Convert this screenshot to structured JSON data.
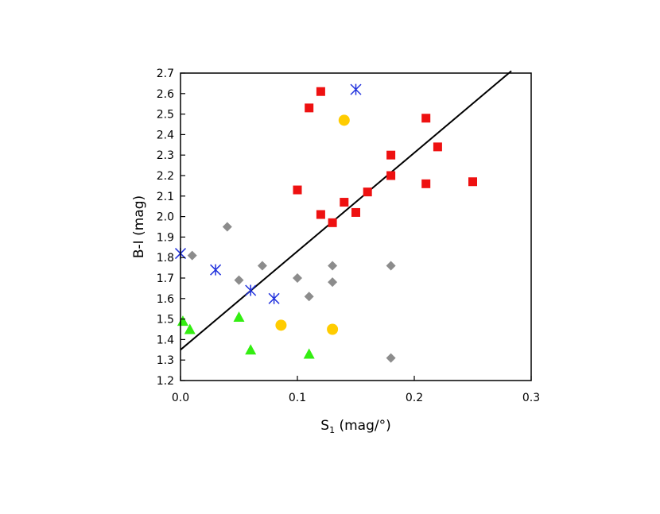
{
  "chart_data": {
    "type": "scatter",
    "xlabel": "S",
    "xlabel_sub": "1",
    "xlabel_unit": " (mag/°)",
    "ylabel": "B-I (mag)",
    "xlim": [
      0.0,
      0.3
    ],
    "ylim": [
      1.2,
      2.7
    ],
    "x_ticks": [
      "0.0",
      "0.1",
      "0.2",
      "0.3"
    ],
    "y_ticks": [
      "1.2",
      "1.3",
      "1.4",
      "1.5",
      "1.6",
      "1.7",
      "1.8",
      "1.9",
      "2.0",
      "2.1",
      "2.2",
      "2.3",
      "2.4",
      "2.5",
      "2.6",
      "2.7"
    ],
    "grid": false,
    "legend": "none",
    "series": [
      {
        "marker": "square",
        "color": "#ee1111",
        "points": [
          [
            0.1,
            2.13
          ],
          [
            0.11,
            2.53
          ],
          [
            0.12,
            2.61
          ],
          [
            0.12,
            2.01
          ],
          [
            0.13,
            1.97
          ],
          [
            0.14,
            2.07
          ],
          [
            0.15,
            2.02
          ],
          [
            0.16,
            2.12
          ],
          [
            0.18,
            2.3
          ],
          [
            0.18,
            2.2
          ],
          [
            0.21,
            2.48
          ],
          [
            0.21,
            2.16
          ],
          [
            0.22,
            2.34
          ],
          [
            0.25,
            2.17
          ]
        ]
      },
      {
        "marker": "asterisk",
        "color": "#2233dd",
        "points": [
          [
            0.0,
            1.82
          ],
          [
            0.03,
            1.74
          ],
          [
            0.06,
            1.64
          ],
          [
            0.08,
            1.6
          ],
          [
            0.15,
            2.62
          ]
        ]
      },
      {
        "marker": "diamond",
        "color": "#8c8c8c",
        "points": [
          [
            0.01,
            1.81
          ],
          [
            0.04,
            1.95
          ],
          [
            0.05,
            1.69
          ],
          [
            0.07,
            1.76
          ],
          [
            0.1,
            1.7
          ],
          [
            0.11,
            1.61
          ],
          [
            0.13,
            1.76
          ],
          [
            0.13,
            1.68
          ],
          [
            0.18,
            1.76
          ],
          [
            0.18,
            1.31
          ]
        ]
      },
      {
        "marker": "triangle",
        "color": "#33ee11",
        "points": [
          [
            0.002,
            1.49
          ],
          [
            0.008,
            1.45
          ],
          [
            0.05,
            1.51
          ],
          [
            0.06,
            1.35
          ],
          [
            0.11,
            1.33
          ]
        ]
      },
      {
        "marker": "circle",
        "color": "#ffcc00",
        "points": [
          [
            0.086,
            1.47
          ],
          [
            0.13,
            1.45
          ],
          [
            0.14,
            2.47
          ]
        ]
      }
    ],
    "fit_line": {
      "color": "#000000",
      "x": [
        0.0,
        0.283
      ],
      "y": [
        1.35,
        2.71
      ]
    }
  }
}
